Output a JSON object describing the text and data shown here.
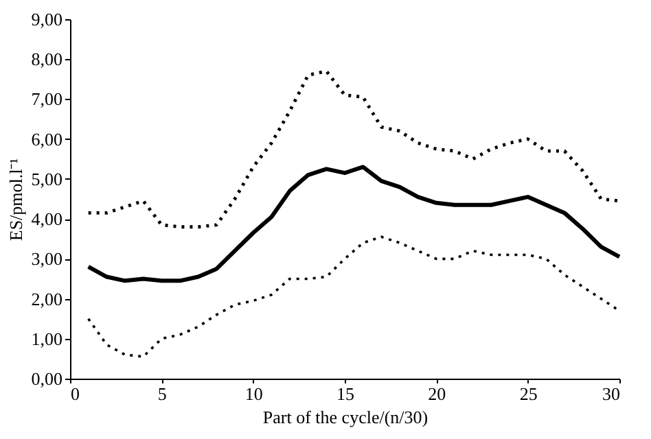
{
  "chart_data": {
    "type": "line",
    "xlabel": "Part of the cycle/(n/30)",
    "ylabel": "ES/pmol.l⁻¹",
    "x": [
      1,
      2,
      3,
      4,
      5,
      6,
      7,
      8,
      9,
      10,
      11,
      12,
      13,
      14,
      15,
      16,
      17,
      18,
      19,
      20,
      21,
      22,
      23,
      24,
      25,
      26,
      27,
      28,
      29,
      30
    ],
    "series": [
      {
        "color": "#000000",
        "line_style": "solid",
        "values": [
          2.8,
          2.55,
          2.45,
          2.5,
          2.45,
          2.45,
          2.55,
          2.75,
          3.2,
          3.65,
          4.05,
          4.7,
          5.1,
          5.25,
          5.15,
          5.3,
          4.95,
          4.8,
          4.55,
          4.4,
          4.35,
          4.35,
          4.35,
          4.45,
          4.55,
          4.35,
          4.15,
          3.75,
          3.3,
          3.05
        ]
      },
      {
        "color": "#000000",
        "line_style": "dotted",
        "values": [
          4.15,
          4.15,
          4.3,
          4.45,
          3.85,
          3.8,
          3.8,
          3.85,
          4.5,
          5.3,
          5.9,
          6.7,
          7.6,
          7.7,
          7.1,
          7.05,
          6.3,
          6.2,
          5.9,
          5.75,
          5.7,
          5.5,
          5.75,
          5.9,
          6.0,
          5.7,
          5.7,
          5.2,
          4.5,
          4.45
        ]
      },
      {
        "color": "#000000",
        "line_style": "dotted",
        "values": [
          1.5,
          0.85,
          0.6,
          0.55,
          1.0,
          1.1,
          1.3,
          1.6,
          1.85,
          1.95,
          2.1,
          2.5,
          2.5,
          2.55,
          3.0,
          3.4,
          3.55,
          3.4,
          3.2,
          3.0,
          3.0,
          3.2,
          3.1,
          3.1,
          3.1,
          3.0,
          2.6,
          2.3,
          2.0,
          1.7
        ]
      }
    ],
    "xlim": [
      0,
      30
    ],
    "xticks": [
      0,
      5,
      10,
      15,
      20,
      25,
      30
    ],
    "ylim": [
      0,
      9
    ],
    "yticks": [
      {
        "value": 0,
        "label": "0,00"
      },
      {
        "value": 1,
        "label": "1,00"
      },
      {
        "value": 2,
        "label": "2,00"
      },
      {
        "value": 3,
        "label": "3,00"
      },
      {
        "value": 4,
        "label": "4,00"
      },
      {
        "value": 5,
        "label": "5,00"
      },
      {
        "value": 6,
        "label": "6,00"
      },
      {
        "value": 7,
        "label": "7,00"
      },
      {
        "value": 8,
        "label": "8,00"
      },
      {
        "value": 9,
        "label": "9,00"
      }
    ],
    "grid": false
  }
}
